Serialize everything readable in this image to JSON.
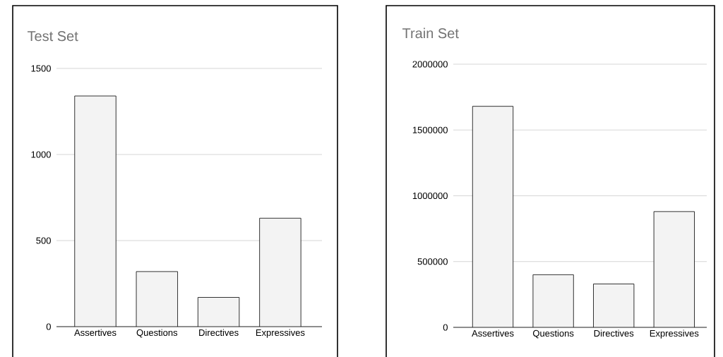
{
  "chart_data": [
    {
      "type": "bar",
      "title": "Test Set",
      "categories": [
        "Assertives",
        "Questions",
        "Directives",
        "Expressives"
      ],
      "values": [
        1340,
        320,
        170,
        630
      ],
      "color": "#f3f3f3",
      "ylim": [
        0,
        1500
      ],
      "yticks": [
        0,
        500,
        1000,
        1500
      ],
      "grid": "y"
    },
    {
      "type": "bar",
      "title": "Train Set",
      "categories": [
        "Assertives",
        "Questions",
        "Directives",
        "Expressives"
      ],
      "values": [
        1680000,
        400000,
        330000,
        880000
      ],
      "color": "#f3f3f3",
      "ylim": [
        0,
        2000000
      ],
      "yticks": [
        0,
        500000,
        1000000,
        1500000,
        2000000
      ],
      "grid": "y"
    }
  ]
}
